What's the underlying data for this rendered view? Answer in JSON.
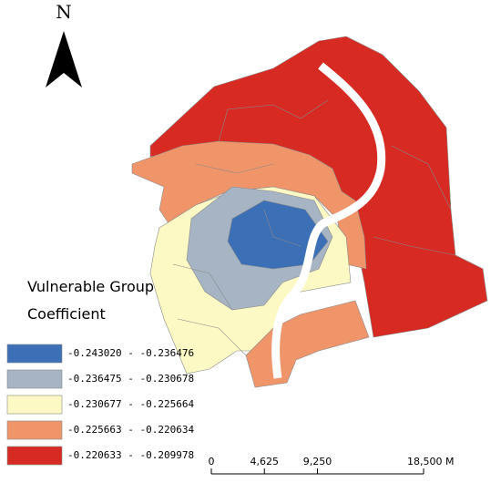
{
  "north_arrow": {
    "label": "N"
  },
  "legend": {
    "title": [
      "Vulnerable Group",
      "Coefficient"
    ],
    "classes": [
      {
        "label": "-0.243020 - -0.236476",
        "color": "#3b6fb6"
      },
      {
        "label": "-0.236475 - -0.230678",
        "color": "#a6b4c4"
      },
      {
        "label": "-0.230677 - -0.225664",
        "color": "#fcf9c4"
      },
      {
        "label": "-0.225663 - -0.220634",
        "color": "#f0946a"
      },
      {
        "label": "-0.220633 - -0.209978",
        "color": "#d62a22"
      }
    ]
  },
  "scale_bar": {
    "ticks": [
      0,
      {
        "value": 4625,
        "label": "4,625"
      },
      {
        "value": 9250,
        "label": "9,250"
      },
      {
        "value": 18500,
        "label": "18,500 M"
      }
    ]
  }
}
